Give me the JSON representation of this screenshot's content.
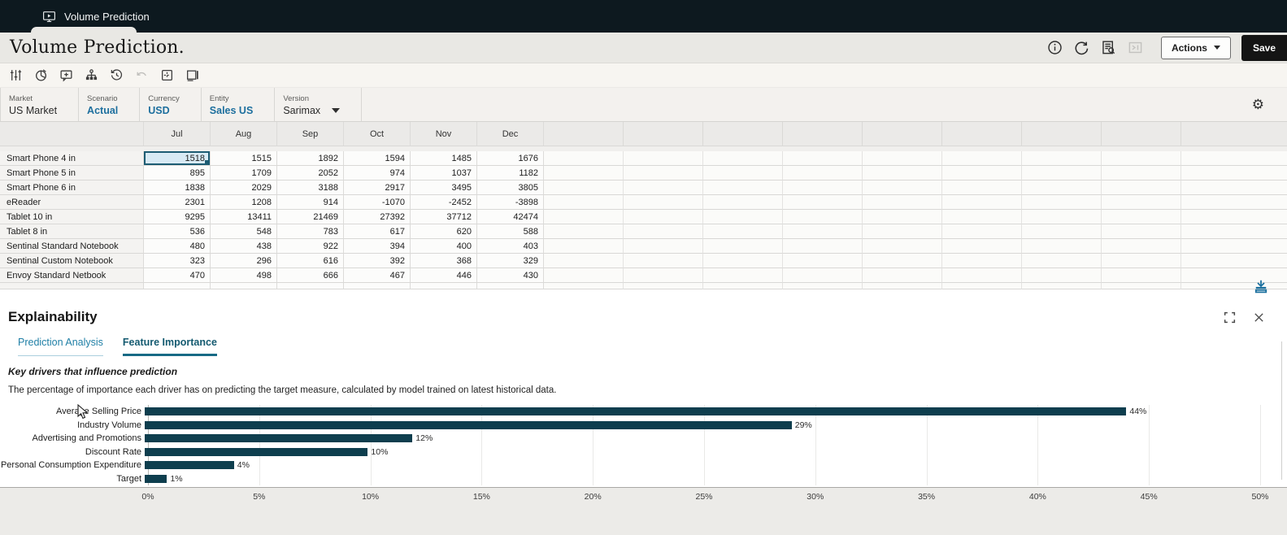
{
  "app": {
    "tab_label": "Volume Prediction"
  },
  "header": {
    "title": "Volume Prediction.",
    "actions_label": "Actions",
    "save_label": "Save",
    "icons": [
      "info-icon",
      "refresh-icon",
      "audit-log-icon",
      "expand-panel-icon"
    ]
  },
  "toolbar": {
    "icons": [
      "adjust-sliders-icon",
      "analyze-pie-icon",
      "add-comment-icon",
      "hierarchy-icon",
      "history-icon",
      "undo-icon",
      "grid-options-icon",
      "freeze-pane-icon"
    ]
  },
  "pov": {
    "items": [
      {
        "label": "Market",
        "value": "US Market",
        "accent": false,
        "dropdown": false
      },
      {
        "label": "Scenario",
        "value": "Actual",
        "accent": true,
        "dropdown": false
      },
      {
        "label": "Currency",
        "value": "USD",
        "accent": true,
        "dropdown": false
      },
      {
        "label": "Entity",
        "value": "Sales US",
        "accent": true,
        "dropdown": false
      },
      {
        "label": "Version",
        "value": "Sarimax",
        "accent": false,
        "dropdown": true
      }
    ],
    "gear_icon": "settings-gear-icon"
  },
  "grid": {
    "columns": [
      "Jul",
      "Aug",
      "Sep",
      "Oct",
      "Nov",
      "Dec"
    ],
    "rows": [
      {
        "label": "Smart Phone 4 in",
        "values": [
          "1518",
          "1515",
          "1892",
          "1594",
          "1485",
          "1676"
        ]
      },
      {
        "label": "Smart Phone 5 in",
        "values": [
          "895",
          "1709",
          "2052",
          "974",
          "1037",
          "1182"
        ]
      },
      {
        "label": "Smart Phone 6 in",
        "values": [
          "1838",
          "2029",
          "3188",
          "2917",
          "3495",
          "3805"
        ]
      },
      {
        "label": "eReader",
        "values": [
          "2301",
          "1208",
          "914",
          "-1070",
          "-2452",
          "-3898"
        ]
      },
      {
        "label": "Tablet 10 in",
        "values": [
          "9295",
          "13411",
          "21469",
          "27392",
          "37712",
          "42474"
        ]
      },
      {
        "label": "Tablet 8 in",
        "values": [
          "536",
          "548",
          "783",
          "617",
          "620",
          "588"
        ]
      },
      {
        "label": "Sentinal Standard Notebook",
        "values": [
          "480",
          "438",
          "922",
          "394",
          "400",
          "403"
        ]
      },
      {
        "label": "Sentinal Custom Notebook",
        "values": [
          "323",
          "296",
          "616",
          "392",
          "368",
          "329"
        ]
      },
      {
        "label": "Envoy Standard Netbook",
        "values": [
          "470",
          "498",
          "666",
          "467",
          "446",
          "430"
        ]
      }
    ],
    "selected_cell": {
      "row": 0,
      "col": 0
    }
  },
  "explainability": {
    "title": "Explainability",
    "tabs": [
      {
        "label": "Prediction Analysis",
        "active": false
      },
      {
        "label": "Feature Importance",
        "active": true
      }
    ],
    "subtitle": "Key drivers that influence prediction",
    "description": "The percentage of importance each driver has on predicting the target measure, calculated by model trained on latest historical data."
  },
  "chart_data": {
    "type": "bar",
    "orientation": "horizontal",
    "title": "Key drivers that influence prediction",
    "categories": [
      "Average Selling Price",
      "Industry Volume",
      "Advertising and Promotions",
      "Discount Rate",
      "Personal Consumption Expenditure",
      "Target"
    ],
    "values": [
      44,
      29,
      12,
      10,
      4,
      1
    ],
    "value_labels": [
      "44%",
      "29%",
      "12%",
      "10%",
      "4%",
      "1%"
    ],
    "xlabel": "",
    "ylabel": "",
    "xlim": [
      0,
      50
    ],
    "x_ticks": [
      "0%",
      "5%",
      "10%",
      "15%",
      "20%",
      "25%",
      "30%",
      "35%",
      "40%",
      "45%",
      "50%"
    ],
    "grid": "vertical",
    "legend": "none",
    "bar_color": "#0e3e4e"
  },
  "colors": {
    "accent": "#1d6f9e",
    "topbar_bg": "#0d191f",
    "selection_border": "#1d5c73",
    "selection_bg": "#d8eaf4",
    "bar": "#0e3e4e"
  }
}
